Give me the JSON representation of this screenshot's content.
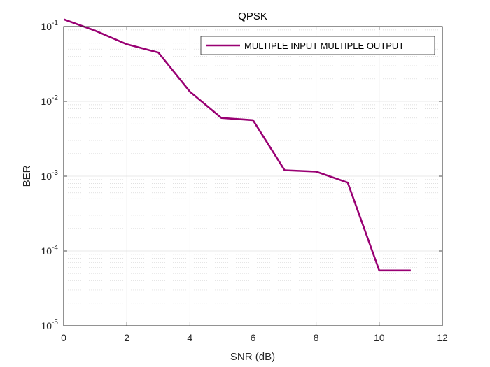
{
  "chart_data": {
    "type": "line",
    "title": "QPSK",
    "xlabel": "SNR (dB)",
    "ylabel": "BER",
    "xlim": [
      0,
      12
    ],
    "ylim": [
      1e-05,
      0.1
    ],
    "yscale": "log",
    "grid": true,
    "minor_grid": true,
    "legend_position": "top-right",
    "x_ticks": [
      0,
      2,
      4,
      6,
      8,
      10,
      12
    ],
    "x_tick_labels": [
      "0",
      "2",
      "4",
      "6",
      "8",
      "10",
      "12"
    ],
    "y_ticks": [
      {
        "value": 0.1,
        "mantissa": "10",
        "exponent": "-1"
      },
      {
        "value": 0.01,
        "mantissa": "10",
        "exponent": "-2"
      },
      {
        "value": 0.001,
        "mantissa": "10",
        "exponent": "-3"
      },
      {
        "value": 0.0001,
        "mantissa": "10",
        "exponent": "-4"
      },
      {
        "value": 1e-05,
        "mantissa": "10",
        "exponent": "-5"
      }
    ],
    "series": [
      {
        "name": "MULTIPLE INPUT MULTIPLE OUTPUT",
        "color": "#990073",
        "x": [
          0,
          1,
          2,
          3,
          4,
          5,
          6,
          7,
          8,
          9,
          10,
          11
        ],
        "y": [
          0.125,
          0.088,
          0.058,
          0.045,
          0.0135,
          0.006,
          0.0056,
          0.0012,
          0.00115,
          0.00082,
          5.5e-05,
          5.5e-05
        ]
      }
    ]
  }
}
